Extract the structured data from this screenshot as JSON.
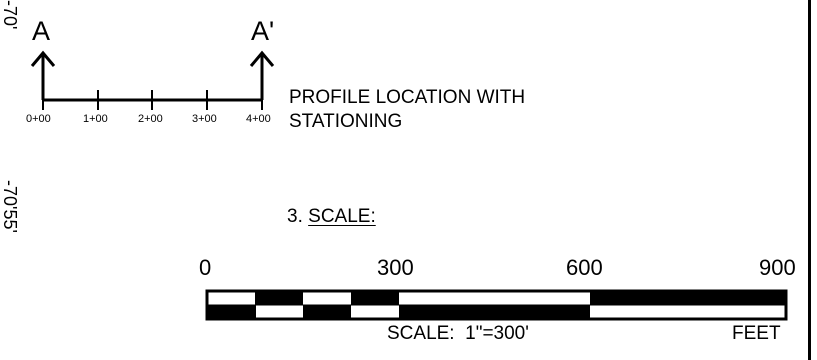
{
  "edge_labels": {
    "top": "-70'",
    "bottom": "-70'55'"
  },
  "profile": {
    "start_marker": "A",
    "end_marker": "A'",
    "stations": [
      "0+00",
      "1+00",
      "2+00",
      "3+00",
      "4+00"
    ],
    "caption_line1": "PROFILE LOCATION WITH",
    "caption_line2": "STATIONING"
  },
  "scale_section": {
    "number": "3.",
    "title": "SCALE:",
    "tick_labels": [
      "0",
      "300",
      "600",
      "900"
    ],
    "ratio_label": "SCALE:  1\"=300'",
    "unit_label": "FEET"
  }
}
